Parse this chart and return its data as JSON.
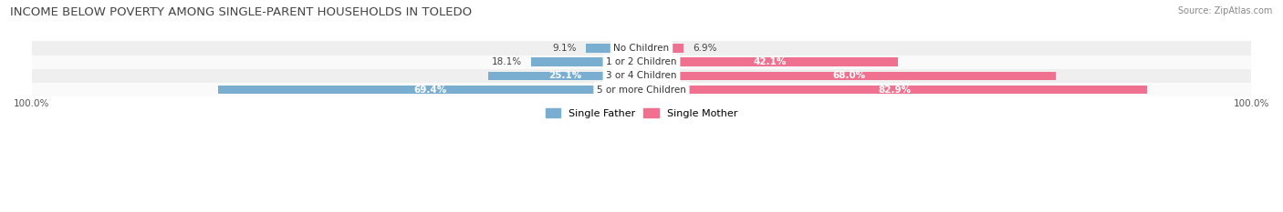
{
  "title": "INCOME BELOW POVERTY AMONG SINGLE-PARENT HOUSEHOLDS IN TOLEDO",
  "source": "Source: ZipAtlas.com",
  "categories": [
    "No Children",
    "1 or 2 Children",
    "3 or 4 Children",
    "5 or more Children"
  ],
  "single_father": [
    9.1,
    18.1,
    25.1,
    69.4
  ],
  "single_mother": [
    6.9,
    42.1,
    68.0,
    82.9
  ],
  "father_color": "#7aaed0",
  "mother_color": "#f07090",
  "bar_height": 0.62,
  "row_bg_colors": [
    "#efefef",
    "#fafafa",
    "#efefef",
    "#fafafa"
  ],
  "xlim": 100,
  "title_fontsize": 9.5,
  "tick_fontsize": 7.5,
  "label_fontsize": 7.5,
  "bar_label_fontsize": 7.5,
  "legend_fontsize": 8,
  "source_fontsize": 7,
  "white_text_threshold": 20
}
